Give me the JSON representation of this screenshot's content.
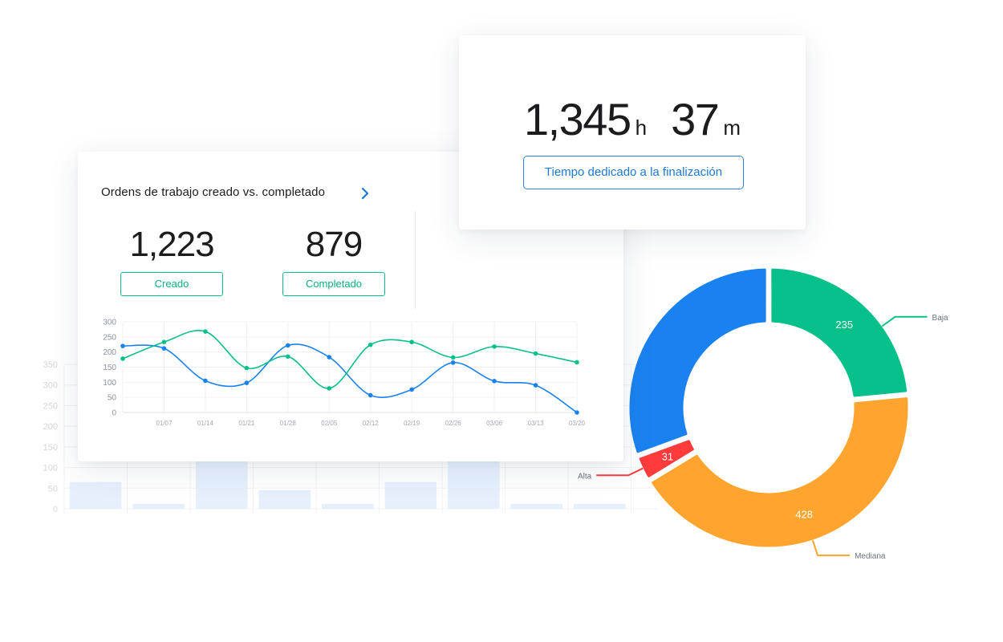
{
  "work_orders_card": {
    "title": "Ordens de trabajo creado vs. completado",
    "created_value": "1,223",
    "created_label": "Creado",
    "completed_value": "879",
    "completed_label": "Completado"
  },
  "time_card": {
    "hours": "1,345",
    "hours_unit": "h",
    "minutes": "37",
    "minutes_unit": "m",
    "button_label": "Tiempo dedicado a la finalización"
  },
  "colors": {
    "green": "#08c08a",
    "blue": "#1a82f0",
    "orange": "#ffa42e",
    "red": "#ff3b3b",
    "bar_fill": "#e6f0fd"
  },
  "chart_data": [
    {
      "type": "line",
      "x": [
        "",
        "01/07",
        "01/14",
        "01/21",
        "01/28",
        "02/05",
        "02/12",
        "02/19",
        "02/26",
        "03/06",
        "03/13",
        "03/20"
      ],
      "ylim": [
        0,
        300
      ],
      "yticks": [
        0,
        50,
        100,
        150,
        200,
        250,
        300
      ],
      "grid": true,
      "series": [
        {
          "color": "#1a82f0",
          "values": [
            220,
            212,
            105,
            98,
            222,
            183,
            57,
            76,
            165,
            104,
            90,
            0
          ]
        },
        {
          "color": "#08c08a",
          "values": [
            178,
            233,
            268,
            147,
            185,
            80,
            224,
            233,
            182,
            218,
            195,
            166
          ]
        }
      ]
    },
    {
      "type": "pie",
      "donut": true,
      "labels": [
        "Baja",
        "Mediana",
        "Alta",
        ""
      ],
      "values": [
        235,
        428,
        31,
        306
      ],
      "value_labels": [
        "235",
        "428",
        "31",
        ""
      ],
      "colors": [
        "#08c08a",
        "#ffa42e",
        "#ff3b3b",
        "#1a82f0"
      ]
    },
    {
      "type": "bar",
      "ylim": [
        0,
        350
      ],
      "yticks": [
        0,
        50,
        100,
        150,
        200,
        250,
        300,
        350
      ],
      "values": [
        65,
        12,
        115,
        45,
        12,
        65,
        125,
        12,
        12
      ],
      "grid": true
    }
  ]
}
